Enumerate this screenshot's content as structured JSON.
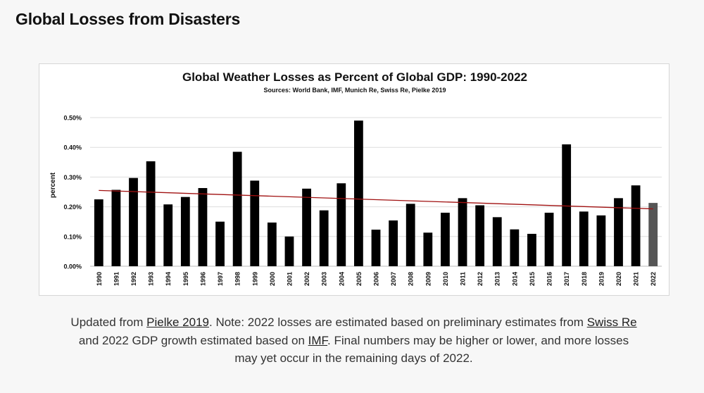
{
  "page": {
    "title": "Global Losses from Disasters"
  },
  "caption": {
    "t1": "Updated from ",
    "link1": "Pielke 2019",
    "t2": ". Note: 2022 losses are estimated based on preliminary estimates from ",
    "link2": "Swiss Re",
    "t3": " and 2022 GDP growth estimated based on ",
    "link3": "IMF",
    "t4": ". Final numbers may be higher or lower, and more losses may yet occur in the remaining days of 2022."
  },
  "colors": {
    "bar": "#000000",
    "bar_estimate": "#555555",
    "trend": "#a01010",
    "grid": "#dddddd"
  },
  "chart_data": {
    "type": "bar",
    "title": "Global Weather Losses as Percent of Global GDP: 1990-2022",
    "subtitle": "Sources: World Bank, IMF, Munich Re, Swiss Re, Pielke 2019",
    "ylabel": "percent",
    "xlabel": "",
    "ylim": [
      0,
      0.005
    ],
    "yticks": [
      "0.00%",
      "0.10%",
      "0.20%",
      "0.30%",
      "0.40%",
      "0.50%"
    ],
    "ytick_values": [
      0,
      0.001,
      0.002,
      0.003,
      0.004,
      0.005
    ],
    "grid": true,
    "legend": "none",
    "categories": [
      "1990",
      "1991",
      "1992",
      "1993",
      "1994",
      "1995",
      "1996",
      "1997",
      "1998",
      "1999",
      "2000",
      "2001",
      "2002",
      "2003",
      "2004",
      "2005",
      "2006",
      "2007",
      "2008",
      "2009",
      "2010",
      "2011",
      "2012",
      "2013",
      "2014",
      "2015",
      "2016",
      "2017",
      "2018",
      "2019",
      "2020",
      "2021",
      "2022"
    ],
    "values": [
      0.00225,
      0.00257,
      0.00297,
      0.00353,
      0.00208,
      0.00233,
      0.00263,
      0.0015,
      0.00385,
      0.00288,
      0.00147,
      0.001,
      0.00261,
      0.00188,
      0.00279,
      0.0049,
      0.00123,
      0.00154,
      0.0021,
      0.00113,
      0.0018,
      0.00229,
      0.00205,
      0.00165,
      0.00124,
      0.00109,
      0.0018,
      0.0041,
      0.00184,
      0.00171,
      0.00229,
      0.00272,
      0.00213
    ],
    "estimated_category": "2022",
    "trendline": {
      "start": 0.00255,
      "end": 0.00193
    }
  }
}
